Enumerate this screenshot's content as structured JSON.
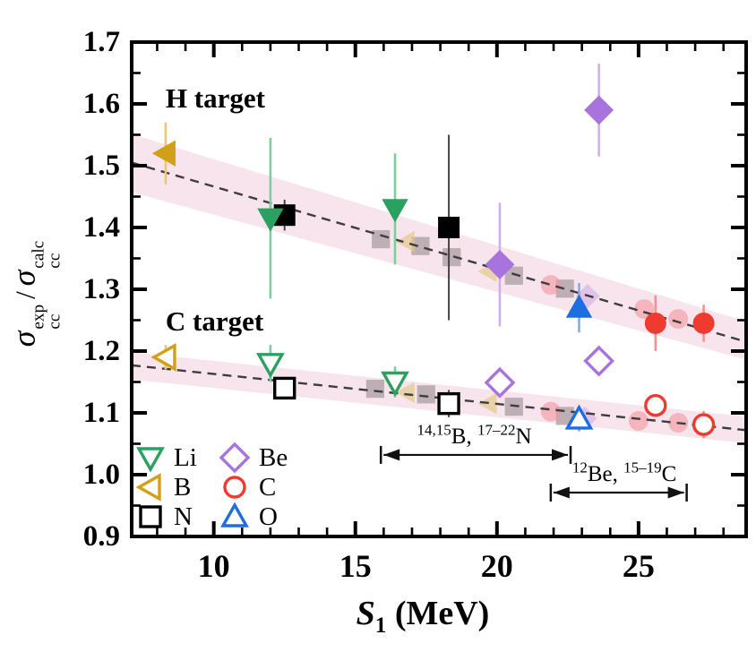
{
  "figure": {
    "xlabel": {
      "symbol": "S",
      "sub": "1",
      "units": " (MeV)"
    },
    "ylabel": {
      "sigma": "σ",
      "sub": "cc",
      "sup_exp": "exp",
      "sup_calc": "calc",
      "divider": "/"
    }
  },
  "colors": {
    "axis": "#000000",
    "fit_line": "#3d3d3d",
    "band_fill": "rgba(240,196,215,0.45)",
    "annotation": "#111111"
  },
  "elements": {
    "Li": {
      "marker": "triangle-down",
      "color": "#2AA161",
      "err_color": "#7FCDA1"
    },
    "B": {
      "marker": "triangle-left",
      "color": "#D2A018",
      "err_color": "#E8C77B"
    },
    "N": {
      "marker": "square",
      "color": "#000000",
      "err_color": "#555555"
    },
    "Be": {
      "marker": "diamond",
      "color": "#A873DC",
      "err_color": "#CDB0EC"
    },
    "C": {
      "marker": "circle",
      "color": "#EF3A2F",
      "err_color": "#F4938C"
    },
    "O": {
      "marker": "triangle-up",
      "color": "#1D6EE0",
      "err_color": "#7FAEEE"
    }
  },
  "chart_data": {
    "type": "scatter",
    "title": "",
    "xlabel": "S_1 (MeV)",
    "ylabel": "sigma_cc^exp / sigma_cc^calc",
    "xlim": [
      7.1,
      28.8
    ],
    "ylim": [
      0.9,
      1.7
    ],
    "x_major_ticks": [
      10,
      15,
      20,
      25
    ],
    "x_minor_step": 1,
    "y_major_ticks": [
      0.9,
      1.0,
      1.1,
      1.2,
      1.3,
      1.4,
      1.5,
      1.6,
      1.7
    ],
    "y_minor_step": 0.05,
    "grid": false,
    "legend_position": "bottom-left-inside",
    "ghost_style": {
      "square": "rgba(130,122,122,0.5)",
      "circle": "rgba(242,150,158,0.6)",
      "triangle-left": "rgba(228,198,134,0.65)",
      "diamond": "rgba(202,162,232,0.5)"
    },
    "groups": [
      {
        "name": "H target",
        "marker_fill": "filled",
        "label_x": 8.3,
        "label_y": 1.608,
        "fit_line": {
          "x": [
            7.1,
            28.8
          ],
          "y": [
            1.505,
            1.215
          ]
        },
        "band": {
          "x": [
            7.1,
            28.8
          ],
          "top": [
            1.551,
            1.248
          ],
          "bottom": [
            1.457,
            1.186
          ]
        },
        "points": [
          {
            "element": "B",
            "x": 8.3,
            "y": 1.52,
            "err": 0.05
          },
          {
            "element": "N",
            "x": 12.5,
            "y": 1.42,
            "err": 0.025
          },
          {
            "element": "Li",
            "x": 12.0,
            "y": 1.415,
            "err": 0.13
          },
          {
            "element": "Li",
            "x": 16.4,
            "y": 1.43,
            "err": 0.09
          },
          {
            "element": "N",
            "x": 18.3,
            "y": 1.4,
            "err": 0.15
          },
          {
            "element": "Be",
            "x": 20.1,
            "y": 1.34,
            "err": 0.1
          },
          {
            "element": "Be",
            "x": 23.6,
            "y": 1.59,
            "err": 0.075
          },
          {
            "element": "O",
            "x": 22.9,
            "y": 1.27,
            "err": 0.04
          },
          {
            "element": "C",
            "x": 25.6,
            "y": 1.245,
            "err": 0.045
          },
          {
            "element": "C",
            "x": 27.3,
            "y": 1.245,
            "err": 0.03
          }
        ],
        "ghost_points": [
          {
            "shape": "square",
            "x": 15.9,
            "y": 1.381
          },
          {
            "shape": "square",
            "x": 17.3,
            "y": 1.37
          },
          {
            "shape": "square",
            "x": 18.4,
            "y": 1.352
          },
          {
            "shape": "square",
            "x": 20.6,
            "y": 1.322
          },
          {
            "shape": "square",
            "x": 22.4,
            "y": 1.301
          },
          {
            "shape": "triangle-left",
            "x": 16.8,
            "y": 1.377
          },
          {
            "shape": "triangle-left",
            "x": 19.7,
            "y": 1.329
          },
          {
            "shape": "circle",
            "x": 21.9,
            "y": 1.307
          },
          {
            "shape": "circle",
            "x": 25.2,
            "y": 1.268
          },
          {
            "shape": "circle",
            "x": 26.4,
            "y": 1.252
          },
          {
            "shape": "diamond",
            "x": 23.2,
            "y": 1.289
          }
        ]
      },
      {
        "name": "C target",
        "marker_fill": "open",
        "label_x": 8.3,
        "label_y": 1.248,
        "fit_line": {
          "x": [
            7.1,
            28.8
          ],
          "y": [
            1.177,
            1.072
          ]
        },
        "band": {
          "x": [
            7.1,
            28.8
          ],
          "top": [
            1.198,
            1.094
          ],
          "bottom": [
            1.154,
            1.051
          ]
        },
        "points": [
          {
            "element": "B",
            "x": 8.3,
            "y": 1.19,
            "err": 0.02
          },
          {
            "element": "N",
            "x": 12.5,
            "y": 1.14,
            "err": 0.015
          },
          {
            "element": "Li",
            "x": 12.0,
            "y": 1.18,
            "err": 0.03
          },
          {
            "element": "Li",
            "x": 16.4,
            "y": 1.15,
            "err": 0.025
          },
          {
            "element": "N",
            "x": 18.3,
            "y": 1.115,
            "err": 0.022
          },
          {
            "element": "Be",
            "x": 20.1,
            "y": 1.149,
            "err": 0
          },
          {
            "element": "Be",
            "x": 23.6,
            "y": 1.184,
            "err": 0
          },
          {
            "element": "O",
            "x": 22.9,
            "y": 1.09,
            "err": 0.02
          },
          {
            "element": "C",
            "x": 25.6,
            "y": 1.112,
            "err": 0.015
          },
          {
            "element": "C",
            "x": 27.3,
            "y": 1.081,
            "err": 0.022
          }
        ],
        "ghost_points": [
          {
            "shape": "square",
            "x": 15.7,
            "y": 1.139
          },
          {
            "shape": "square",
            "x": 17.5,
            "y": 1.13
          },
          {
            "shape": "square",
            "x": 20.6,
            "y": 1.11
          },
          {
            "shape": "square",
            "x": 22.4,
            "y": 1.095
          },
          {
            "shape": "triangle-left",
            "x": 16.8,
            "y": 1.133
          },
          {
            "shape": "triangle-left",
            "x": 19.7,
            "y": 1.115
          },
          {
            "shape": "circle",
            "x": 21.9,
            "y": 1.102
          },
          {
            "shape": "circle",
            "x": 25.0,
            "y": 1.087
          },
          {
            "shape": "circle",
            "x": 26.4,
            "y": 1.084
          },
          {
            "shape": "diamond",
            "x": 23.1,
            "y": 1.091
          }
        ]
      }
    ],
    "legend": {
      "rows": [
        [
          {
            "element": "Li",
            "label": "Li"
          },
          {
            "element": "Be",
            "label": "Be"
          }
        ],
        [
          {
            "element": "B",
            "label": "B"
          },
          {
            "element": "C",
            "label": "C"
          }
        ],
        [
          {
            "element": "N",
            "label": "N"
          },
          {
            "element": "O",
            "label": "O"
          }
        ]
      ]
    },
    "annotations": [
      {
        "parts": [
          {
            "sup": "14,15"
          },
          {
            "t": "B, "
          },
          {
            "sup": "17–22"
          },
          {
            "t": "N"
          }
        ],
        "text_x": 19.2,
        "text_y": 1.061,
        "arrow_x1": 15.9,
        "arrow_x2": 22.6,
        "arrow_y": 1.032
      },
      {
        "parts": [
          {
            "sup": "12"
          },
          {
            "t": "Be, "
          },
          {
            "sup": "15–19"
          },
          {
            "t": "C"
          }
        ],
        "text_x": 24.5,
        "text_y": 1.0,
        "arrow_x1": 21.9,
        "arrow_x2": 26.7,
        "arrow_y": 0.971
      }
    ]
  }
}
